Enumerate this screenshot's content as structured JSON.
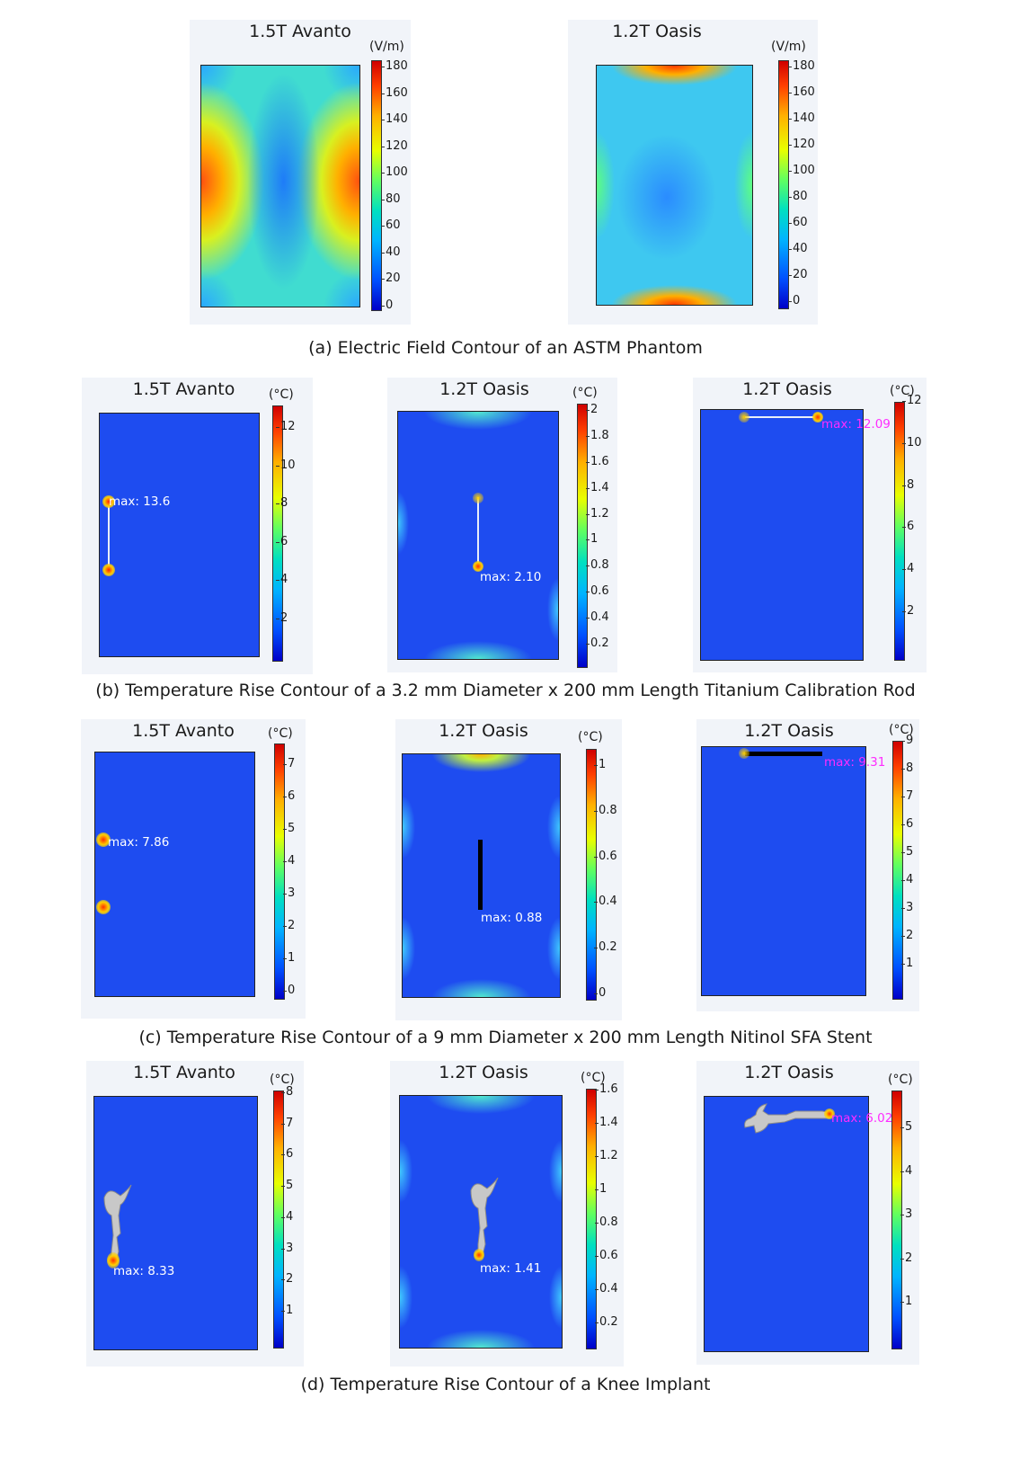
{
  "rows": [
    {
      "caption": "(a) Electric Field Contour of an ASTM Phantom",
      "panels": [
        {
          "title": "1.5T Avanto",
          "unit": "(V/m)",
          "ticks": [
            "180",
            "160",
            "140",
            "120",
            "100",
            "80",
            "60",
            "40",
            "20",
            "0"
          ],
          "max": null
        },
        {
          "title": "1.2T Oasis",
          "unit": "(V/m)",
          "ticks": [
            "180",
            "160",
            "140",
            "120",
            "100",
            "80",
            "60",
            "40",
            "20",
            "0"
          ],
          "max": null
        }
      ]
    },
    {
      "caption": "(b) Temperature Rise Contour of a 3.2 mm Diameter x 200 mm Length Titanium Calibration Rod",
      "panels": [
        {
          "title": "1.5T Avanto",
          "unit": "(°C)",
          "ticks": [
            "12",
            "10",
            "8",
            "6",
            "4",
            "2"
          ],
          "max": "max: 13.6"
        },
        {
          "title": "1.2T Oasis",
          "unit": "(°C)",
          "ticks": [
            "2",
            "1.8",
            "1.6",
            "1.4",
            "1.2",
            "1",
            "0.8",
            "0.6",
            "0.4",
            "0.2"
          ],
          "max": "max: 2.10"
        },
        {
          "title": "1.2T Oasis",
          "unit": "(°C)",
          "ticks": [
            "12",
            "10",
            "8",
            "6",
            "4",
            "2"
          ],
          "max": "max: 12.09"
        }
      ]
    },
    {
      "caption": "(c) Temperature Rise Contour of a 9 mm Diameter x 200 mm Length Nitinol SFA Stent",
      "panels": [
        {
          "title": "1.5T Avanto",
          "unit": "(°C)",
          "ticks": [
            "7",
            "6",
            "5",
            "4",
            "3",
            "2",
            "1",
            "0"
          ],
          "max": "max: 7.86"
        },
        {
          "title": "1.2T Oasis",
          "unit": "(°C)",
          "ticks": [
            "1",
            "0.8",
            "0.6",
            "0.4",
            "0.2",
            "0"
          ],
          "max": "max: 0.88"
        },
        {
          "title": "1.2T Oasis",
          "unit": "(°C)",
          "ticks": [
            "9",
            "8",
            "7",
            "6",
            "5",
            "4",
            "3",
            "2",
            "1"
          ],
          "max": "max: 9.31"
        }
      ]
    },
    {
      "caption": "(d) Temperature Rise Contour of a Knee Implant",
      "panels": [
        {
          "title": "1.5T Avanto",
          "unit": "(°C)",
          "ticks": [
            "8",
            "7",
            "6",
            "5",
            "4",
            "3",
            "2",
            "1"
          ],
          "max": "max: 8.33"
        },
        {
          "title": "1.2T Oasis",
          "unit": "(°C)",
          "ticks": [
            "1.6",
            "1.4",
            "1.2",
            "1",
            "0.8",
            "0.6",
            "0.4",
            "0.2"
          ],
          "max": "max: 1.41"
        },
        {
          "title": "1.2T Oasis",
          "unit": "(°C)",
          "ticks": [
            "5",
            "4",
            "3",
            "2",
            "1"
          ],
          "max": "max: 6.02"
        }
      ]
    }
  ],
  "colors": {
    "max_white": "#ffffff",
    "max_magenta": "#ff2cff",
    "field_base": "#1e4cf0"
  }
}
